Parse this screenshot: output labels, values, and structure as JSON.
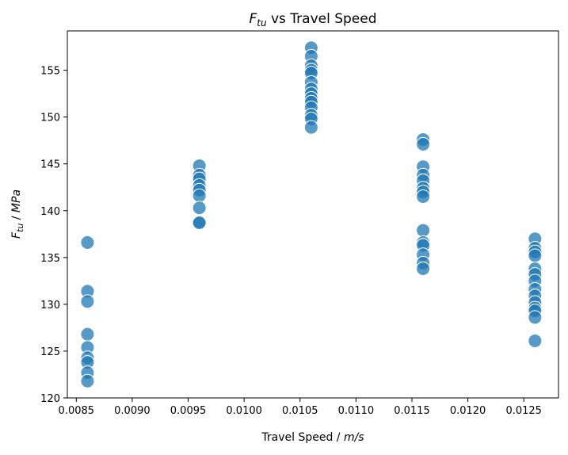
{
  "chart_data": {
    "type": "scatter",
    "title": {
      "symbol": "F",
      "subscript": "tu",
      "rest": " vs Travel Speed"
    },
    "xlabel": {
      "text": "Travel Speed / ",
      "unit": "m/s"
    },
    "ylabel": {
      "symbol": "F",
      "subscript": "tu",
      "rest": " / ",
      "unit": "MPa"
    },
    "xlim": [
      0.00842,
      0.01281
    ],
    "ylim": [
      120,
      159.2
    ],
    "xticks": [
      0.0085,
      0.009,
      0.0095,
      0.01,
      0.0105,
      0.011,
      0.0115,
      0.012,
      0.0125
    ],
    "xtick_labels": [
      "0.0085",
      "0.0090",
      "0.0095",
      "0.0100",
      "0.0105",
      "0.0110",
      "0.0115",
      "0.0120",
      "0.0125"
    ],
    "yticks": [
      120,
      125,
      130,
      135,
      140,
      145,
      150,
      155
    ],
    "ytick_labels": [
      "120",
      "125",
      "130",
      "135",
      "140",
      "145",
      "150",
      "155"
    ],
    "grid": false,
    "marker_color": "#1f77b4",
    "points": [
      {
        "x": 0.0086,
        "y": 136.6
      },
      {
        "x": 0.0086,
        "y": 131.4
      },
      {
        "x": 0.0086,
        "y": 130.3
      },
      {
        "x": 0.0086,
        "y": 126.8
      },
      {
        "x": 0.0086,
        "y": 125.4
      },
      {
        "x": 0.0086,
        "y": 124.3
      },
      {
        "x": 0.0086,
        "y": 123.8
      },
      {
        "x": 0.0086,
        "y": 122.7
      },
      {
        "x": 0.0086,
        "y": 121.8
      },
      {
        "x": 0.0096,
        "y": 144.8
      },
      {
        "x": 0.0096,
        "y": 143.8
      },
      {
        "x": 0.0096,
        "y": 143.4
      },
      {
        "x": 0.0096,
        "y": 142.7
      },
      {
        "x": 0.0096,
        "y": 142.2
      },
      {
        "x": 0.0096,
        "y": 141.6
      },
      {
        "x": 0.0096,
        "y": 140.3
      },
      {
        "x": 0.0096,
        "y": 138.8
      },
      {
        "x": 0.0096,
        "y": 138.7
      },
      {
        "x": 0.0106,
        "y": 157.4
      },
      {
        "x": 0.0106,
        "y": 156.5
      },
      {
        "x": 0.0106,
        "y": 155.5
      },
      {
        "x": 0.0106,
        "y": 155.0
      },
      {
        "x": 0.0106,
        "y": 154.7
      },
      {
        "x": 0.0106,
        "y": 153.7
      },
      {
        "x": 0.0106,
        "y": 153.0
      },
      {
        "x": 0.0106,
        "y": 152.5
      },
      {
        "x": 0.0106,
        "y": 152.0
      },
      {
        "x": 0.0106,
        "y": 151.6
      },
      {
        "x": 0.0106,
        "y": 151.0
      },
      {
        "x": 0.0106,
        "y": 150.2
      },
      {
        "x": 0.0106,
        "y": 149.8
      },
      {
        "x": 0.0106,
        "y": 148.9
      },
      {
        "x": 0.0116,
        "y": 147.6
      },
      {
        "x": 0.0116,
        "y": 147.1
      },
      {
        "x": 0.0116,
        "y": 144.7
      },
      {
        "x": 0.0116,
        "y": 143.8
      },
      {
        "x": 0.0116,
        "y": 143.2
      },
      {
        "x": 0.0116,
        "y": 142.4
      },
      {
        "x": 0.0116,
        "y": 142.0
      },
      {
        "x": 0.0116,
        "y": 141.5
      },
      {
        "x": 0.0116,
        "y": 137.9
      },
      {
        "x": 0.0116,
        "y": 136.6
      },
      {
        "x": 0.0116,
        "y": 136.3
      },
      {
        "x": 0.0116,
        "y": 135.3
      },
      {
        "x": 0.0116,
        "y": 134.4
      },
      {
        "x": 0.0116,
        "y": 133.8
      },
      {
        "x": 0.0126,
        "y": 137.0
      },
      {
        "x": 0.0126,
        "y": 136.0
      },
      {
        "x": 0.0126,
        "y": 135.6
      },
      {
        "x": 0.0126,
        "y": 135.2
      },
      {
        "x": 0.0126,
        "y": 133.8
      },
      {
        "x": 0.0126,
        "y": 133.2
      },
      {
        "x": 0.0126,
        "y": 132.5
      },
      {
        "x": 0.0126,
        "y": 131.6
      },
      {
        "x": 0.0126,
        "y": 130.9
      },
      {
        "x": 0.0126,
        "y": 130.2
      },
      {
        "x": 0.0126,
        "y": 129.6
      },
      {
        "x": 0.0126,
        "y": 129.3
      },
      {
        "x": 0.0126,
        "y": 128.6
      },
      {
        "x": 0.0126,
        "y": 126.1
      }
    ]
  }
}
